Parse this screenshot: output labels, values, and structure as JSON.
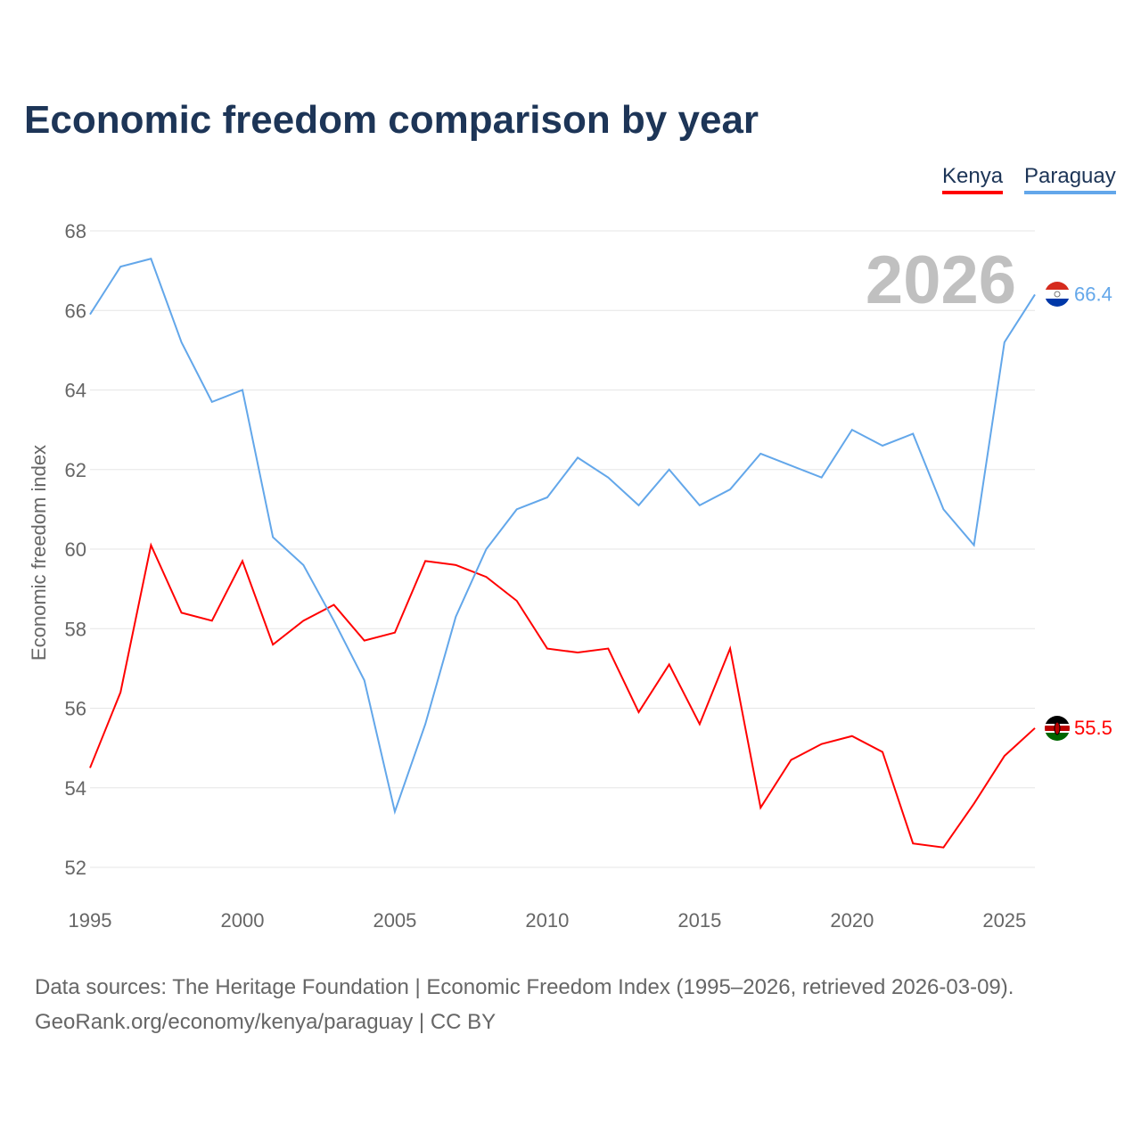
{
  "title": "Economic freedom comparison by year",
  "legend": [
    {
      "label": "Kenya",
      "color": "#ff0000"
    },
    {
      "label": "Paraguay",
      "color": "#63a7ea"
    }
  ],
  "source_line1": "Data sources: The Heritage Foundation | Economic Freedom Index (1995–2026, retrieved 2026-03-09).",
  "source_line2": "GeoRank.org/economy/kenya/paraguay | CC BY",
  "chart_data": {
    "type": "line",
    "title": "Economic freedom comparison by year",
    "xlabel": "",
    "ylabel": "Economic freedom index",
    "year_label": "2026",
    "x": [
      1995,
      1996,
      1997,
      1998,
      1999,
      2000,
      2001,
      2002,
      2003,
      2004,
      2005,
      2006,
      2007,
      2008,
      2009,
      2010,
      2011,
      2012,
      2013,
      2014,
      2015,
      2016,
      2017,
      2018,
      2019,
      2020,
      2021,
      2022,
      2023,
      2024,
      2025,
      2026
    ],
    "xlim": [
      1995,
      2026
    ],
    "ylim": [
      52,
      68
    ],
    "xticks": [
      "1995",
      "2000",
      "2005",
      "2010",
      "2015",
      "2020",
      "2025"
    ],
    "yticks": [
      "52",
      "54",
      "56",
      "58",
      "60",
      "62",
      "64",
      "66",
      "68"
    ],
    "grid": true,
    "legend_position": "top-right",
    "series": [
      {
        "name": "Kenya",
        "color": "#ff0000",
        "end_label": "55.5",
        "values": [
          54.5,
          56.4,
          60.1,
          58.4,
          58.2,
          59.7,
          57.6,
          58.2,
          58.6,
          57.7,
          57.9,
          59.7,
          59.6,
          59.3,
          58.7,
          57.5,
          57.4,
          57.5,
          55.9,
          57.1,
          55.6,
          57.5,
          53.5,
          54.7,
          55.1,
          55.3,
          54.9,
          52.6,
          52.5,
          53.6,
          54.8,
          55.5
        ]
      },
      {
        "name": "Paraguay",
        "color": "#63a7ea",
        "end_label": "66.4",
        "values": [
          65.9,
          67.1,
          67.3,
          65.2,
          63.7,
          64.0,
          60.3,
          59.6,
          58.2,
          56.7,
          53.4,
          55.6,
          58.3,
          60.0,
          61.0,
          61.3,
          62.3,
          61.8,
          61.1,
          62.0,
          61.1,
          61.5,
          62.4,
          62.1,
          61.8,
          63.0,
          62.6,
          62.9,
          61.0,
          60.1,
          65.2,
          66.4
        ]
      }
    ]
  }
}
